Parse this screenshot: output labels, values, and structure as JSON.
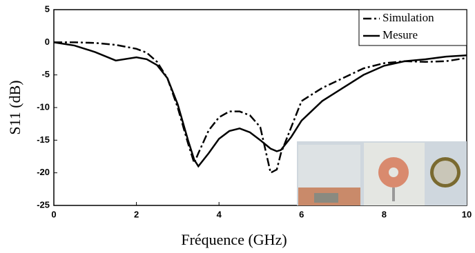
{
  "chart_data": {
    "type": "line",
    "x_label": "Fréquence (GHz)",
    "y_label": "S11 (dB)",
    "x": [
      0,
      0.5,
      1,
      1.5,
      2,
      2.25,
      2.5,
      2.75,
      3,
      3.25,
      3.4,
      3.5,
      3.75,
      4,
      4.25,
      4.5,
      4.75,
      5,
      5.25,
      5.4,
      5.5,
      5.75,
      6,
      6.5,
      7,
      7.5,
      8,
      8.5,
      9,
      9.5,
      10
    ],
    "series": [
      {
        "name": "Simulation",
        "color": "#000000",
        "line_style": "dashdot",
        "values": [
          0,
          0,
          -0.1,
          -0.4,
          -1,
          -1.6,
          -3,
          -5.5,
          -10,
          -15.5,
          -18.5,
          -17,
          -13.5,
          -11.5,
          -10.6,
          -10.6,
          -11.2,
          -13,
          -20,
          -19.5,
          -17,
          -13,
          -9,
          -7,
          -5.5,
          -4,
          -3.2,
          -2.9,
          -3,
          -2.9,
          -2.4
        ]
      },
      {
        "name": "Mesure",
        "color": "#000000",
        "line_style": "solid",
        "values": [
          0,
          -0.5,
          -1.5,
          -2.8,
          -2.3,
          -2.6,
          -3.5,
          -5.5,
          -9.5,
          -15,
          -18,
          -19,
          -17,
          -14.8,
          -13.6,
          -13.2,
          -13.8,
          -15,
          -16.3,
          -16.7,
          -16.5,
          -14.5,
          -12,
          -9,
          -7,
          -5,
          -3.6,
          -2.9,
          -2.6,
          -2.2,
          -2.0
        ]
      }
    ],
    "xlim": [
      0,
      10
    ],
    "xticks": [
      0,
      2,
      4,
      6,
      8,
      10
    ],
    "ylim": [
      -25,
      5
    ],
    "yticks": [
      5,
      0,
      -5,
      -10,
      -15,
      -20,
      -25
    ],
    "grid": false,
    "legend": "upper right"
  }
}
